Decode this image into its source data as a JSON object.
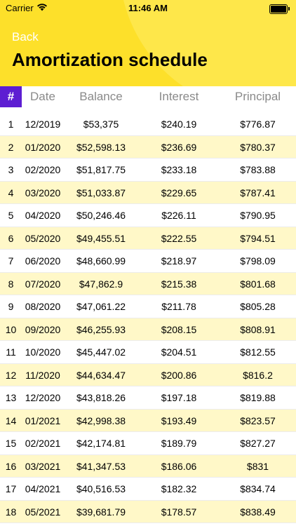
{
  "status_bar": {
    "carrier": "Carrier",
    "time": "11:46 AM"
  },
  "nav": {
    "back_label": "Back",
    "title": "Amortization schedule"
  },
  "columns": {
    "num": "#",
    "date": "Date",
    "balance": "Balance",
    "interest": "Interest",
    "principal": "Principal"
  },
  "colors": {
    "header": "#fde02a",
    "accent": "#5d1ed2",
    "alt_row": "#fff8c8"
  },
  "rows": [
    {
      "num": "1",
      "date": "12/2019",
      "balance": "$53,375",
      "interest": "$240.19",
      "principal": "$776.87"
    },
    {
      "num": "2",
      "date": "01/2020",
      "balance": "$52,598.13",
      "interest": "$236.69",
      "principal": "$780.37"
    },
    {
      "num": "3",
      "date": "02/2020",
      "balance": "$51,817.75",
      "interest": "$233.18",
      "principal": "$783.88"
    },
    {
      "num": "4",
      "date": "03/2020",
      "balance": "$51,033.87",
      "interest": "$229.65",
      "principal": "$787.41"
    },
    {
      "num": "5",
      "date": "04/2020",
      "balance": "$50,246.46",
      "interest": "$226.11",
      "principal": "$790.95"
    },
    {
      "num": "6",
      "date": "05/2020",
      "balance": "$49,455.51",
      "interest": "$222.55",
      "principal": "$794.51"
    },
    {
      "num": "7",
      "date": "06/2020",
      "balance": "$48,660.99",
      "interest": "$218.97",
      "principal": "$798.09"
    },
    {
      "num": "8",
      "date": "07/2020",
      "balance": "$47,862.9",
      "interest": "$215.38",
      "principal": "$801.68"
    },
    {
      "num": "9",
      "date": "08/2020",
      "balance": "$47,061.22",
      "interest": "$211.78",
      "principal": "$805.28"
    },
    {
      "num": "10",
      "date": "09/2020",
      "balance": "$46,255.93",
      "interest": "$208.15",
      "principal": "$808.91"
    },
    {
      "num": "11",
      "date": "10/2020",
      "balance": "$45,447.02",
      "interest": "$204.51",
      "principal": "$812.55"
    },
    {
      "num": "12",
      "date": "11/2020",
      "balance": "$44,634.47",
      "interest": "$200.86",
      "principal": "$816.2"
    },
    {
      "num": "13",
      "date": "12/2020",
      "balance": "$43,818.26",
      "interest": "$197.18",
      "principal": "$819.88"
    },
    {
      "num": "14",
      "date": "01/2021",
      "balance": "$42,998.38",
      "interest": "$193.49",
      "principal": "$823.57"
    },
    {
      "num": "15",
      "date": "02/2021",
      "balance": "$42,174.81",
      "interest": "$189.79",
      "principal": "$827.27"
    },
    {
      "num": "16",
      "date": "03/2021",
      "balance": "$41,347.53",
      "interest": "$186.06",
      "principal": "$831"
    },
    {
      "num": "17",
      "date": "04/2021",
      "balance": "$40,516.53",
      "interest": "$182.32",
      "principal": "$834.74"
    },
    {
      "num": "18",
      "date": "05/2021",
      "balance": "$39,681.79",
      "interest": "$178.57",
      "principal": "$838.49"
    }
  ]
}
